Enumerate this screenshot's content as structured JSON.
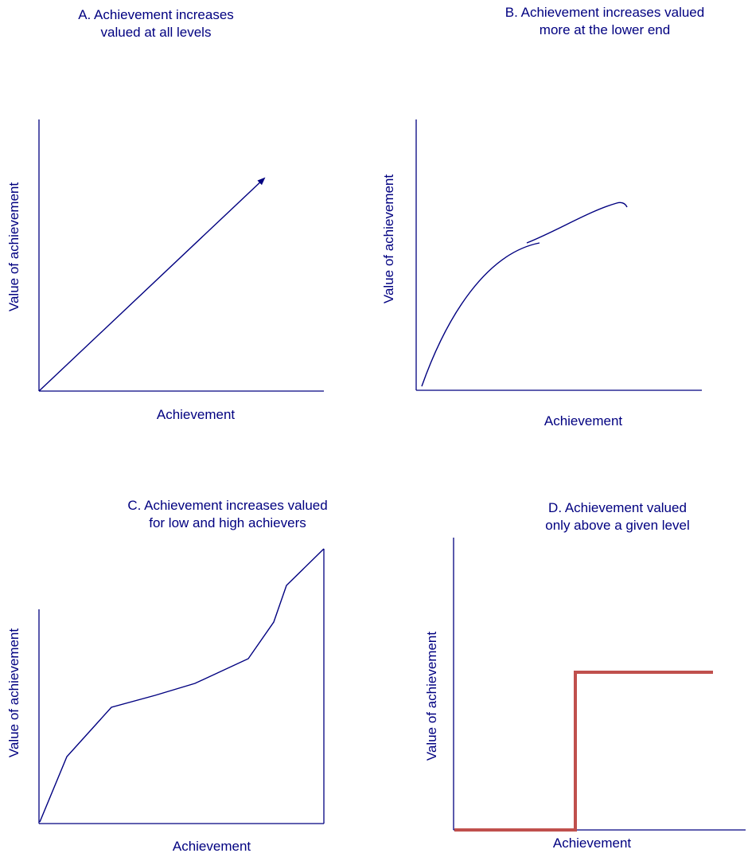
{
  "colors": {
    "title_text": "#000080",
    "axis_text": "#000080",
    "axis_line": "#000080",
    "curve": "#000080",
    "step_curve": "#c0504d"
  },
  "panels": {
    "a": {
      "title_line1": "A.  Achievement increases",
      "title_line2": "valued at all levels",
      "xlabel": "Achievement",
      "ylabel": "Value of achievement"
    },
    "b": {
      "title_line1": "B.  Achievement increases valued",
      "title_line2": "more at the lower end",
      "xlabel": "Achievement",
      "ylabel": "Value of achievement"
    },
    "c": {
      "title_line1": "C.  Achievement increases valued",
      "title_line2": "for low and high achievers",
      "xlabel": "Achievement",
      "ylabel": "Value of achievement"
    },
    "d": {
      "title_line1": "D. Achievement valued",
      "title_line2": "only above a given level",
      "xlabel": "Achievement",
      "ylabel": "Value of achievement"
    }
  }
}
